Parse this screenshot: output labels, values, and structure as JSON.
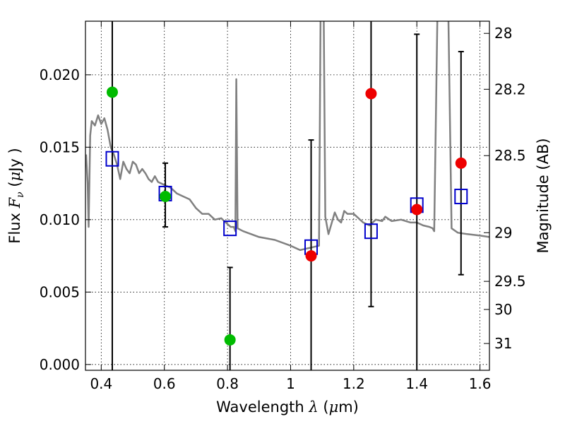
{
  "chart_data": {
    "type": "scatter",
    "title": "",
    "xlabel": "Wavelength  λ (μm)",
    "ylabel": "Flux  F_ν  ( μJy )",
    "ylabel_right": "Magnitude (AB)",
    "ylabel_parts": {
      "prefix": "Flux  ",
      "symbol": "F",
      "subscript": "ν",
      "open": "  (",
      "mu": "μ",
      "unit": "Jy",
      "close": " )"
    },
    "xlabel_parts": {
      "prefix": "Wavelength  ",
      "symbol": "λ",
      "open": " (",
      "mu": "μ",
      "unit": "m)"
    },
    "xlim": [
      0.35,
      1.63
    ],
    "ylim": [
      -0.0004,
      0.0237
    ],
    "grid": true,
    "x_ticks": [
      {
        "value": 0.4,
        "label": "0.4"
      },
      {
        "value": 0.6,
        "label": "0.6"
      },
      {
        "value": 0.8,
        "label": "0.8"
      },
      {
        "value": 1.0,
        "label": "1"
      },
      {
        "value": 1.2,
        "label": "1.2"
      },
      {
        "value": 1.4,
        "label": "1.4"
      },
      {
        "value": 1.6,
        "label": "1.6"
      }
    ],
    "y_ticks": [
      {
        "value": 0.0,
        "label": "0.000"
      },
      {
        "value": 0.005,
        "label": "0.005"
      },
      {
        "value": 0.01,
        "label": "0.010"
      },
      {
        "value": 0.015,
        "label": "0.015"
      },
      {
        "value": 0.02,
        "label": "0.020"
      }
    ],
    "right_ticks": [
      {
        "label": "28",
        "flux": 0.02286
      },
      {
        "label": "28.2",
        "flux": 0.019
      },
      {
        "label": "28.5",
        "flux": 0.01442
      },
      {
        "label": "29",
        "flux": 0.0091
      },
      {
        "label": "29.5",
        "flux": 0.00574
      },
      {
        "label": "30",
        "flux": 0.0038
      },
      {
        "label": "31",
        "flux": 0.00145
      }
    ],
    "series": [
      {
        "marker": "line",
        "color": "#808080",
        "points": [
          [
            0.352,
            0.0145
          ],
          [
            0.357,
            0.0125
          ],
          [
            0.36,
            0.0095
          ],
          [
            0.365,
            0.0158
          ],
          [
            0.37,
            0.0168
          ],
          [
            0.38,
            0.0165
          ],
          [
            0.39,
            0.0172
          ],
          [
            0.4,
            0.0166
          ],
          [
            0.41,
            0.017
          ],
          [
            0.42,
            0.0162
          ],
          [
            0.43,
            0.015
          ],
          [
            0.44,
            0.0145
          ],
          [
            0.45,
            0.0138
          ],
          [
            0.46,
            0.0128
          ],
          [
            0.47,
            0.014
          ],
          [
            0.48,
            0.0135
          ],
          [
            0.49,
            0.0132
          ],
          [
            0.5,
            0.014
          ],
          [
            0.51,
            0.0138
          ],
          [
            0.52,
            0.0132
          ],
          [
            0.53,
            0.0135
          ],
          [
            0.54,
            0.0132
          ],
          [
            0.55,
            0.0128
          ],
          [
            0.56,
            0.0126
          ],
          [
            0.57,
            0.013
          ],
          [
            0.58,
            0.0126
          ],
          [
            0.59,
            0.0125
          ],
          [
            0.6,
            0.0124
          ],
          [
            0.62,
            0.0122
          ],
          [
            0.64,
            0.0118
          ],
          [
            0.66,
            0.0116
          ],
          [
            0.68,
            0.0114
          ],
          [
            0.7,
            0.0108
          ],
          [
            0.72,
            0.0104
          ],
          [
            0.74,
            0.0104
          ],
          [
            0.76,
            0.01
          ],
          [
            0.78,
            0.0101
          ],
          [
            0.8,
            0.0097
          ],
          [
            0.81,
            0.0095
          ],
          [
            0.82,
            0.0095
          ],
          [
            0.825,
            0.0092
          ],
          [
            0.828,
            0.0197
          ],
          [
            0.832,
            0.0094
          ],
          [
            0.85,
            0.0092
          ],
          [
            0.9,
            0.0088
          ],
          [
            0.95,
            0.0086
          ],
          [
            1.0,
            0.0082
          ],
          [
            1.03,
            0.0079
          ],
          [
            1.05,
            0.008
          ],
          [
            1.07,
            0.0081
          ],
          [
            1.09,
            0.0082
          ],
          [
            1.095,
            0.024
          ],
          [
            1.105,
            0.024
          ],
          [
            1.11,
            0.0102
          ],
          [
            1.12,
            0.009
          ],
          [
            1.14,
            0.0105
          ],
          [
            1.15,
            0.01
          ],
          [
            1.16,
            0.0098
          ],
          [
            1.17,
            0.0106
          ],
          [
            1.18,
            0.0104
          ],
          [
            1.2,
            0.0104
          ],
          [
            1.23,
            0.0098
          ],
          [
            1.25,
            0.0096
          ],
          [
            1.27,
            0.01
          ],
          [
            1.29,
            0.0099
          ],
          [
            1.3,
            0.0102
          ],
          [
            1.32,
            0.0099
          ],
          [
            1.35,
            0.01
          ],
          [
            1.38,
            0.0098
          ],
          [
            1.4,
            0.0098
          ],
          [
            1.42,
            0.0096
          ],
          [
            1.44,
            0.0095
          ],
          [
            1.45,
            0.0094
          ],
          [
            1.455,
            0.0092
          ],
          [
            1.465,
            0.024
          ],
          [
            1.5,
            0.024
          ],
          [
            1.51,
            0.0094
          ],
          [
            1.53,
            0.0091
          ],
          [
            1.56,
            0.009
          ],
          [
            1.6,
            0.0089
          ],
          [
            1.63,
            0.0088
          ]
        ]
      },
      {
        "marker": "square",
        "color": "#0000cc",
        "points": [
          [
            0.435,
            0.0142
          ],
          [
            0.603,
            0.0118
          ],
          [
            0.808,
            0.0094
          ],
          [
            1.065,
            0.0081
          ],
          [
            1.255,
            0.0092
          ],
          [
            1.4,
            0.011
          ],
          [
            1.54,
            0.0116
          ]
        ]
      },
      {
        "marker": "circle",
        "color": "#00bb00",
        "points": [
          [
            0.435,
            0.0188
          ],
          [
            0.603,
            0.0116
          ],
          [
            0.808,
            0.0017
          ]
        ]
      },
      {
        "marker": "circle",
        "color": "#ee0000",
        "points": [
          [
            1.065,
            0.0075
          ],
          [
            1.255,
            0.0187
          ],
          [
            1.4,
            0.0107
          ],
          [
            1.54,
            0.0139
          ]
        ]
      }
    ],
    "error_bars": [
      {
        "x": 0.435,
        "low": -0.0004,
        "high": 0.0237,
        "cap_low": false,
        "cap_high": false
      },
      {
        "x": 0.603,
        "low": 0.0095,
        "high": 0.0139,
        "cap_low": true,
        "cap_high": true
      },
      {
        "x": 0.808,
        "low": -0.0004,
        "high": 0.0067,
        "cap_low": false,
        "cap_high": true
      },
      {
        "x": 1.065,
        "low": -0.0004,
        "high": 0.0155,
        "cap_low": false,
        "cap_high": true
      },
      {
        "x": 1.255,
        "low": 0.004,
        "high": 0.0237,
        "cap_low": true,
        "cap_high": false
      },
      {
        "x": 1.4,
        "low": -0.0004,
        "high": 0.0228,
        "cap_low": false,
        "cap_high": true
      },
      {
        "x": 1.54,
        "low": 0.0062,
        "high": 0.0216,
        "cap_low": true,
        "cap_high": true
      }
    ]
  }
}
